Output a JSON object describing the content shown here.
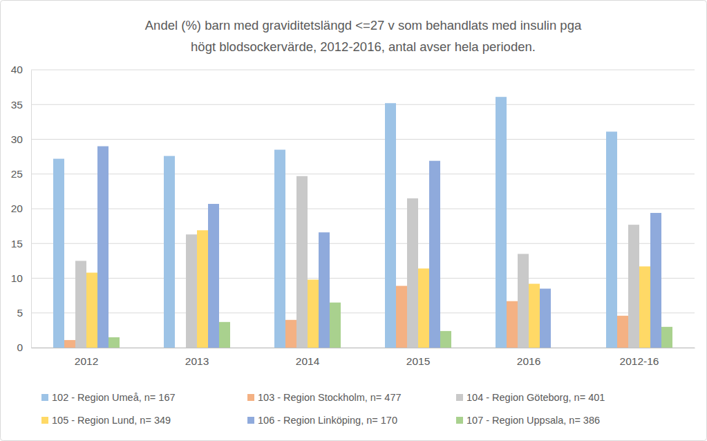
{
  "chart_data": {
    "type": "bar",
    "title": [
      "Andel (%) barn med graviditetslängd <=27 v som behandlats med insulin pga",
      "högt blodsockervärde,  2012-2016, antal avser hela perioden."
    ],
    "categories": [
      "2012",
      "2013",
      "2014",
      "2015",
      "2016",
      "2012-16"
    ],
    "series": [
      {
        "name": "102 - Region Umeå, n= 167",
        "color": "#9dc3e6",
        "values": [
          27.2,
          27.6,
          28.5,
          35.2,
          36.1,
          31.1
        ]
      },
      {
        "name": "103 - Region Stockholm, n= 477",
        "color": "#f4b183",
        "values": [
          1.1,
          0,
          4.0,
          8.9,
          6.7,
          4.6
        ]
      },
      {
        "name": "104 - Region Göteborg, n= 401",
        "color": "#c9c9c9",
        "values": [
          12.5,
          16.3,
          24.7,
          21.5,
          13.5,
          17.7
        ]
      },
      {
        "name": "105 - Region Lund, n= 349",
        "color": "#ffd966",
        "values": [
          10.8,
          16.9,
          9.8,
          11.4,
          9.2,
          11.7
        ]
      },
      {
        "name": "106 - Region Linköping, n= 170",
        "color": "#8faadc",
        "values": [
          29.0,
          20.7,
          16.6,
          26.9,
          8.5,
          19.4
        ]
      },
      {
        "name": "107 - Region Uppsala, n= 386",
        "color": "#a9d18e",
        "values": [
          1.5,
          3.7,
          6.5,
          2.4,
          0,
          3.0
        ]
      }
    ],
    "ylim": [
      0,
      40
    ],
    "yticks": [
      0,
      5,
      10,
      15,
      20,
      25,
      30,
      35,
      40
    ],
    "grid": true,
    "legend": "bottom"
  }
}
